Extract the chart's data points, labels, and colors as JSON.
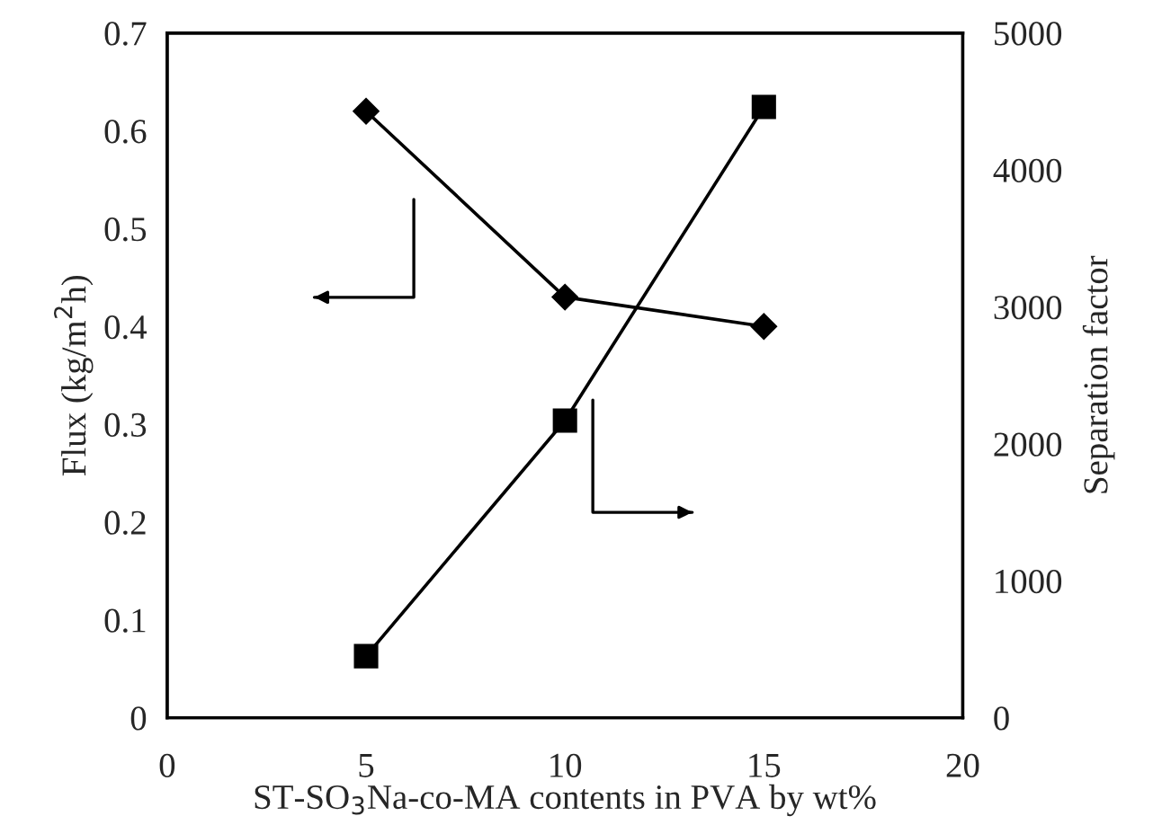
{
  "chart_data": {
    "type": "line",
    "xlabel": "ST-SO$_{3}$Na-co-MA contents in PVA by wt%",
    "ylabel": "Flux (kg/m$^{2}$h)",
    "y2label": "Separation factor",
    "x": [
      5,
      10,
      15
    ],
    "series": [
      {
        "color": "#000000",
        "marker": "diamond",
        "values": [
          0.62,
          0.43,
          0.4
        ]
      },
      {
        "color": "#000000",
        "marker": "square",
        "axis": "y2",
        "values": [
          450,
          2170,
          4460
        ]
      }
    ],
    "xlim": [
      0,
      20
    ],
    "xticks": [
      0,
      5,
      10,
      15,
      20
    ],
    "ylim": [
      0,
      0.7
    ],
    "yticks": [
      0,
      0.1,
      0.2,
      0.3,
      0.4,
      0.5,
      0.6,
      0.7
    ],
    "y2lim": [
      0,
      5000
    ],
    "y2ticks": [
      0,
      1000,
      2000,
      3000,
      4000,
      5000
    ],
    "grid": false,
    "legend": false,
    "line_style": "solid"
  }
}
